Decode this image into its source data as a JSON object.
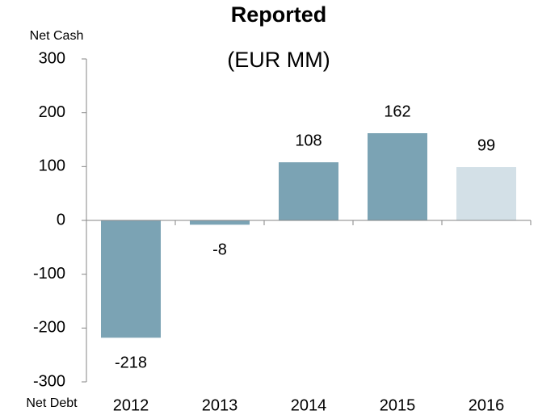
{
  "chart_data": {
    "type": "bar",
    "title": "Reported",
    "subtitle": "(EUR MM)",
    "y_label_top": "Net Cash",
    "y_label_bottom": "Net Debt",
    "categories": [
      "2012",
      "2013",
      "2014",
      "2015",
      "2016"
    ],
    "values": [
      -218,
      -8,
      108,
      162,
      99
    ],
    "colors": [
      "#7ba3b4",
      "#7ba3b4",
      "#7ba3b4",
      "#7ba3b4",
      "#d3e0e7"
    ],
    "ylim": [
      -300,
      300
    ],
    "yticks": [
      -300,
      -200,
      -100,
      0,
      100,
      200,
      300
    ],
    "grid": false
  }
}
